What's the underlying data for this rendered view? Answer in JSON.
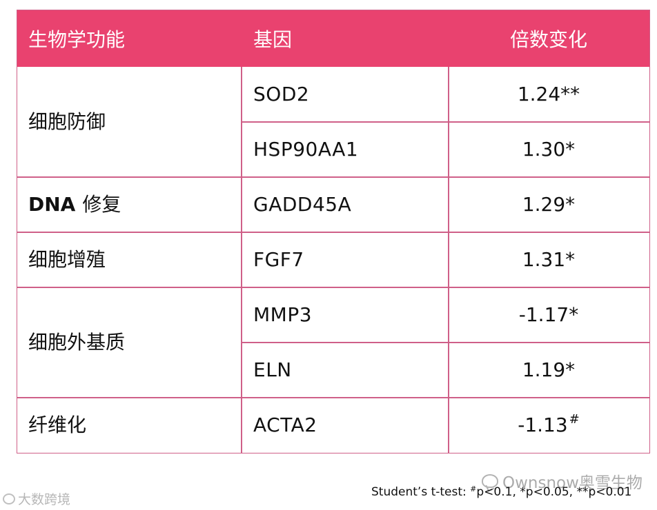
{
  "table": {
    "headers": [
      "生物学功能",
      "基因",
      "倍数变化"
    ],
    "groups": [
      {
        "function": "细胞防御",
        "rows": [
          {
            "gene": "SOD2",
            "fold": "1.24**"
          },
          {
            "gene": "HSP90AA1",
            "fold": "1.30*"
          }
        ]
      },
      {
        "function_prefix": "DNA",
        "function": "修复",
        "rows": [
          {
            "gene": "GADD45A",
            "fold": "1.29*"
          }
        ]
      },
      {
        "function": "细胞增殖",
        "rows": [
          {
            "gene": "FGF7",
            "fold": "1.31*"
          }
        ]
      },
      {
        "function": "细胞外基质",
        "rows": [
          {
            "gene": "MMP3",
            "fold": "-1.17*"
          },
          {
            "gene": "ELN",
            "fold": "1.19*"
          }
        ]
      },
      {
        "function": "纤维化",
        "rows": [
          {
            "gene": "ACTA2",
            "fold": "-1.13",
            "fold_mark": "#"
          }
        ]
      }
    ]
  },
  "footnote": {
    "prefix": "Student’s t-test: ",
    "mark1": "#",
    "part1": "p<0.1, ",
    "part2": "*p<0.05, ",
    "part3": "**p<0.01"
  },
  "watermarks": {
    "right": "Ownsnow奥雪生物",
    "left": "大数跨境"
  }
}
